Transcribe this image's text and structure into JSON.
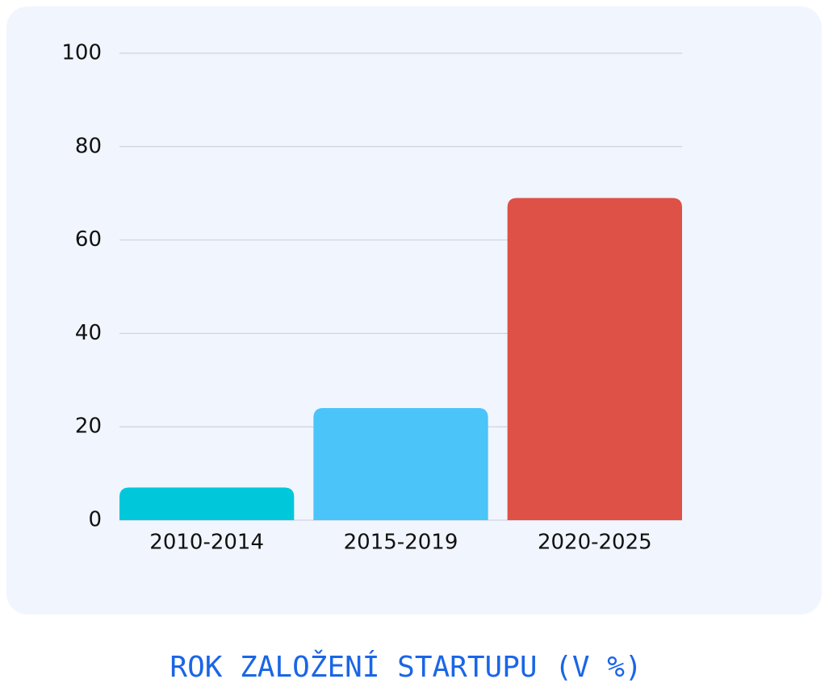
{
  "chart_data": {
    "type": "bar",
    "title": "ROK ZALOŽENÍ STARTUPU (V %)",
    "categories": [
      "2010-2014",
      "2015-2019",
      "2020-2025"
    ],
    "values": [
      7,
      24,
      69
    ],
    "colors": [
      "#00c8da",
      "#4bc4fa",
      "#de5147"
    ],
    "ylim": [
      0,
      100
    ],
    "yticks": [
      0,
      20,
      40,
      60,
      80,
      100
    ],
    "grid": true
  }
}
